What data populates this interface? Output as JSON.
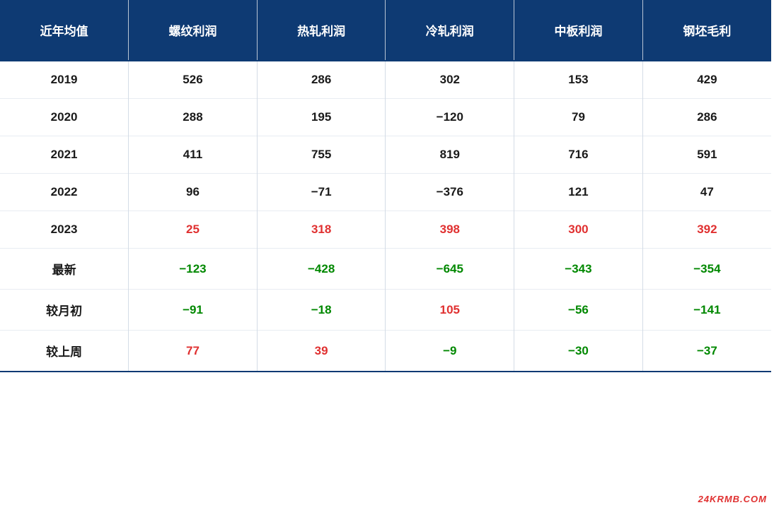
{
  "table": {
    "header_bg_color": "#0e3a73",
    "header_text_color": "#ffffff",
    "border_color": "#d4dce6",
    "positive_color": "#e03030",
    "negative_color": "#008800",
    "neutral_color": "#1a1a1a",
    "columns": [
      "近年均值",
      "螺纹利润",
      "热轧利润",
      "冷轧利润",
      "中板利润",
      "钢坯毛利"
    ],
    "rows": [
      {
        "label": "2019",
        "cells": [
          {
            "value": "526",
            "sign": "neutral"
          },
          {
            "value": "286",
            "sign": "neutral"
          },
          {
            "value": "302",
            "sign": "neutral"
          },
          {
            "value": "153",
            "sign": "neutral"
          },
          {
            "value": "429",
            "sign": "neutral"
          }
        ]
      },
      {
        "label": "2020",
        "cells": [
          {
            "value": "288",
            "sign": "neutral"
          },
          {
            "value": "195",
            "sign": "neutral"
          },
          {
            "value": "−120",
            "sign": "neutral"
          },
          {
            "value": "79",
            "sign": "neutral"
          },
          {
            "value": "286",
            "sign": "neutral"
          }
        ]
      },
      {
        "label": "2021",
        "cells": [
          {
            "value": "411",
            "sign": "neutral"
          },
          {
            "value": "755",
            "sign": "neutral"
          },
          {
            "value": "819",
            "sign": "neutral"
          },
          {
            "value": "716",
            "sign": "neutral"
          },
          {
            "value": "591",
            "sign": "neutral"
          }
        ]
      },
      {
        "label": "2022",
        "cells": [
          {
            "value": "96",
            "sign": "neutral"
          },
          {
            "value": "−71",
            "sign": "neutral"
          },
          {
            "value": "−376",
            "sign": "neutral"
          },
          {
            "value": "121",
            "sign": "neutral"
          },
          {
            "value": "47",
            "sign": "neutral"
          }
        ]
      },
      {
        "label": "2023",
        "cells": [
          {
            "value": "25",
            "sign": "pos"
          },
          {
            "value": "318",
            "sign": "pos"
          },
          {
            "value": "398",
            "sign": "pos"
          },
          {
            "value": "300",
            "sign": "pos"
          },
          {
            "value": "392",
            "sign": "pos"
          }
        ]
      },
      {
        "label": "最新",
        "cells": [
          {
            "value": "−123",
            "sign": "neg"
          },
          {
            "value": "−428",
            "sign": "neg"
          },
          {
            "value": "−645",
            "sign": "neg"
          },
          {
            "value": "−343",
            "sign": "neg"
          },
          {
            "value": "−354",
            "sign": "neg"
          }
        ]
      },
      {
        "label": "较月初",
        "cells": [
          {
            "value": "−91",
            "sign": "neg"
          },
          {
            "value": "−18",
            "sign": "neg"
          },
          {
            "value": "105",
            "sign": "pos"
          },
          {
            "value": "−56",
            "sign": "neg"
          },
          {
            "value": "−141",
            "sign": "neg"
          }
        ]
      },
      {
        "label": "较上周",
        "cells": [
          {
            "value": "77",
            "sign": "pos"
          },
          {
            "value": "39",
            "sign": "pos"
          },
          {
            "value": "−9",
            "sign": "neg"
          },
          {
            "value": "−30",
            "sign": "neg"
          },
          {
            "value": "−37",
            "sign": "neg"
          }
        ]
      }
    ]
  },
  "watermark": {
    "text": "24KRMB.COM",
    "color": "#e03030"
  }
}
